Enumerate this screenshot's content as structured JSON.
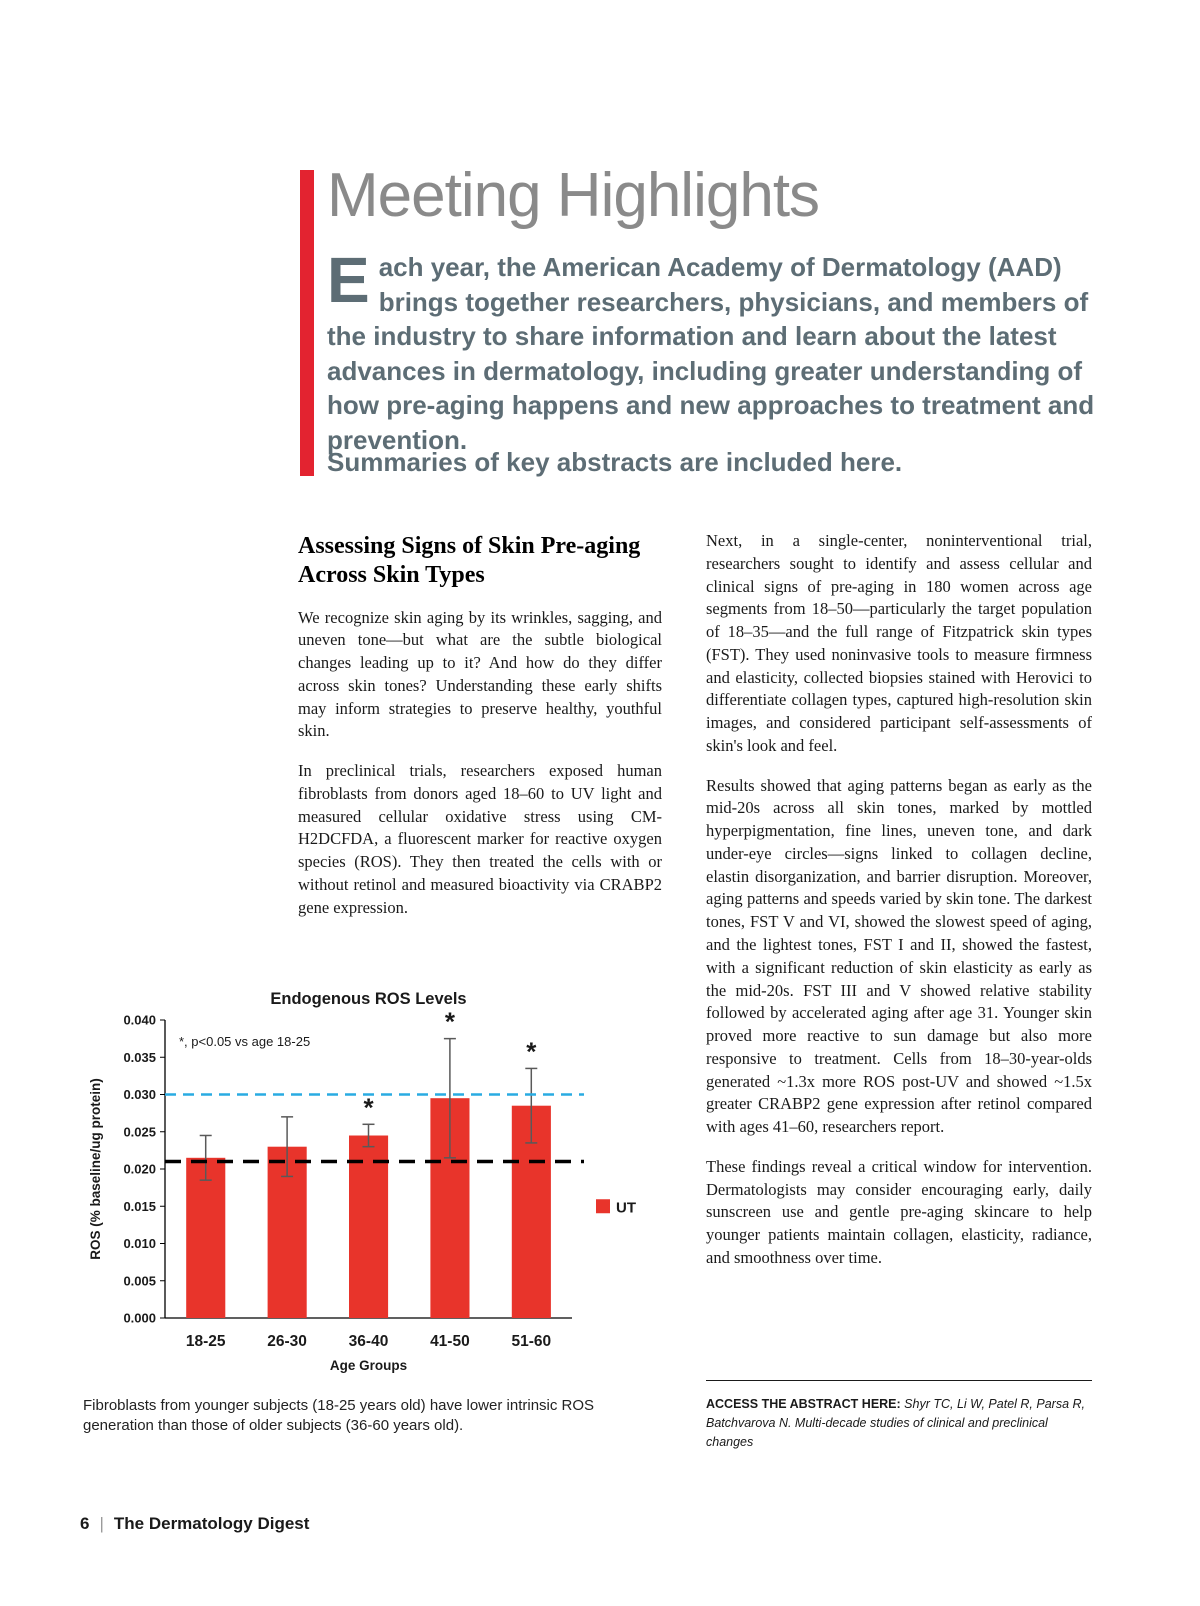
{
  "colors": {
    "accent_red": "#e32330",
    "intro_text": "#5d6d75",
    "title_gray": "#8a8a8a"
  },
  "header": {
    "title": "Meeting Highlights",
    "intro_dropcap": "E",
    "intro_rest": "ach year, the American Academy of Dermatology (AAD) brings together researchers, physicians, and members of the industry to share information and learn about the latest advances in dermatology, including greater understanding of how pre-aging happens and new approaches to treatment and prevention.",
    "summary_line": "Summaries of key abstracts are included here."
  },
  "article": {
    "heading": "Assessing Signs of Skin Pre-aging Across Skin Types",
    "left_paragraphs": [
      "We recognize skin aging by its wrinkles, sagging, and uneven tone—but what are the subtle biological changes leading up to it? And how do they differ across skin tones? Understanding these early shifts may inform strategies to preserve healthy, youthful skin.",
      "In preclinical trials, researchers exposed human fibroblasts from donors aged 18–60 to UV light and measured cellular oxidative stress using CM-H2DCFDA, a fluorescent marker for reactive oxygen species (ROS). They then treated the cells with or without retinol and measured bioactivity via CRABP2 gene expression."
    ],
    "right_paragraphs": [
      "Next, in a single-center, noninterventional trial, researchers sought to identify and assess cellular and clinical signs of pre-aging in 180 women across age segments from 18–50—particularly the target population of 18–35—and the full range of Fitzpatrick skin types (FST). They used noninvasive tools to measure firmness and elasticity, collected biopsies stained with Herovici to differentiate collagen types, captured high-resolution skin images, and considered participant self-assessments of skin's look and feel.",
      "Results showed that aging patterns began as early as the mid-20s across all skin tones, marked by mottled hyperpigmentation, fine lines, uneven tone, and dark under-eye circles—signs linked to collagen decline, elastin disorganization, and barrier disruption. Moreover, aging patterns and speeds varied by skin tone. The darkest tones, FST V and VI, showed the slowest speed of aging, and the lightest tones, FST I and II, showed the fastest, with a significant reduction of skin elasticity as early as the mid-20s. FST III and V showed relative stability followed by accelerated aging after age 31. Younger skin proved more reactive to sun damage but also more responsive to treatment. Cells from 18–30-year-olds generated ~1.3x more ROS post-UV and showed ~1.5x greater CRABP2 gene expression after retinol compared with ages 41–60, researchers report.",
      "These findings reveal a critical window for intervention. Dermatologists may consider encouraging early, daily sunscreen use and gentle pre-aging skincare to help younger patients maintain collagen, elasticity, radiance, and smoothness over time."
    ],
    "access_label": "ACCESS THE ABSTRACT HERE:",
    "access_citation": "Shyr TC, Li W, Patel R, Parsa R, Batchvarova N. Multi-decade studies of clinical and preclinical changes"
  },
  "figure": {
    "caption": "Fibroblasts from younger subjects (18-25 years old) have lower intrinsic ROS generation than those of older subjects (36-60 years old)."
  },
  "footer": {
    "page_number": "6",
    "separator": "|",
    "publication": "The Dermatology Digest"
  },
  "chart_data": {
    "type": "bar",
    "title": "Endogenous ROS Levels",
    "xlabel": "Age Groups",
    "ylabel": "ROS (% baseline/ug protein)",
    "categories": [
      "18-25",
      "26-30",
      "36-40",
      "41-50",
      "51-60"
    ],
    "series": [
      {
        "name": "UT",
        "color": "#e8342b",
        "values": [
          0.0215,
          0.023,
          0.0245,
          0.0295,
          0.0285
        ]
      }
    ],
    "error_bars": [
      0.003,
      0.004,
      0.0015,
      0.008,
      0.005
    ],
    "significant": [
      false,
      false,
      true,
      true,
      true
    ],
    "significance_note": "*, p<0.05 vs age 18-25",
    "reference_lines": [
      {
        "value": 0.03,
        "color": "#29abe2",
        "style": "dashed"
      },
      {
        "value": 0.021,
        "color": "#000000",
        "style": "dashed"
      }
    ],
    "ylim": [
      0,
      0.04
    ],
    "ytick_step": 0.005,
    "legend": [
      "UT"
    ],
    "legend_position": "right",
    "grid": false
  }
}
